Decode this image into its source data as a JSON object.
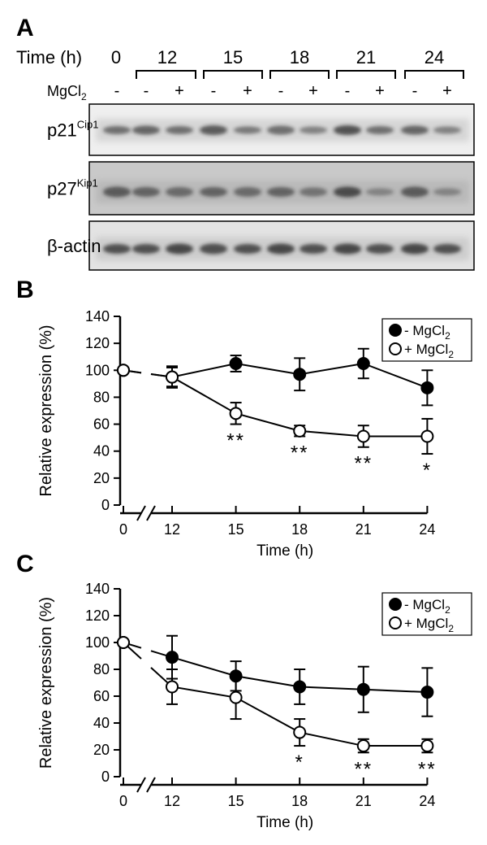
{
  "panel_a": {
    "label": "A",
    "time_label": "Time (h)",
    "times": [
      "0",
      "12",
      "15",
      "18",
      "21",
      "24"
    ],
    "mgcl2_label": "MgCl",
    "mgcl2_sub": "2",
    "signs": [
      "-",
      "-",
      "+",
      "-",
      "+",
      "-",
      "+",
      "-",
      "+",
      "-",
      "+"
    ],
    "blots": [
      {
        "name": "p21",
        "sup": "Cip1"
      },
      {
        "name": "p27",
        "sup": "Kip1"
      },
      {
        "name": "β-actin",
        "sup": ""
      }
    ]
  },
  "chart_data": [
    {
      "type": "line",
      "panel": "B",
      "xlabel": "Time  (h)",
      "ylabel": "Relative expression  (%)",
      "x": [
        0,
        12,
        15,
        18,
        21,
        24
      ],
      "xticks": [
        "0",
        "12",
        "15",
        "18",
        "21",
        "24"
      ],
      "yticks": [
        "0",
        "20",
        "40",
        "60",
        "80",
        "100",
        "120",
        "140"
      ],
      "ylim": [
        0,
        140
      ],
      "axis_break": true,
      "legend_position": "top-right",
      "series": [
        {
          "name": "- MgCl",
          "sub": "2",
          "marker": "filled-circle",
          "values": [
            100,
            95,
            105,
            97,
            105,
            87
          ],
          "errors": [
            0,
            8,
            6,
            12,
            11,
            13
          ]
        },
        {
          "name": "+ MgCl",
          "sub": "2",
          "marker": "open-circle",
          "values": [
            100,
            95,
            68,
            55,
            51,
            51
          ],
          "errors": [
            0,
            7,
            8,
            4,
            8,
            13
          ]
        }
      ],
      "significance": [
        {
          "x": 15,
          "text": "**"
        },
        {
          "x": 18,
          "text": "**"
        },
        {
          "x": 21,
          "text": "**"
        },
        {
          "x": 24,
          "text": "*"
        }
      ]
    },
    {
      "type": "line",
      "panel": "C",
      "xlabel": "Time  (h)",
      "ylabel": "Relative expression  (%)",
      "x": [
        0,
        12,
        15,
        18,
        21,
        24
      ],
      "xticks": [
        "0",
        "12",
        "15",
        "18",
        "21",
        "24"
      ],
      "yticks": [
        "0",
        "20",
        "40",
        "60",
        "80",
        "100",
        "120",
        "140"
      ],
      "ylim": [
        0,
        140
      ],
      "axis_break": true,
      "legend_position": "top-right",
      "series": [
        {
          "name": "- MgCl",
          "sub": "2",
          "marker": "filled-circle",
          "values": [
            100,
            89,
            75,
            67,
            65,
            63
          ],
          "errors": [
            0,
            16,
            11,
            13,
            17,
            18
          ]
        },
        {
          "name": "+ MgCl",
          "sub": "2",
          "marker": "open-circle",
          "values": [
            100,
            67,
            59,
            33,
            23,
            23
          ],
          "errors": [
            0,
            13,
            16,
            10,
            5,
            5
          ]
        }
      ],
      "significance": [
        {
          "x": 18,
          "text": "*"
        },
        {
          "x": 21,
          "text": "**"
        },
        {
          "x": 24,
          "text": "**"
        }
      ]
    }
  ]
}
